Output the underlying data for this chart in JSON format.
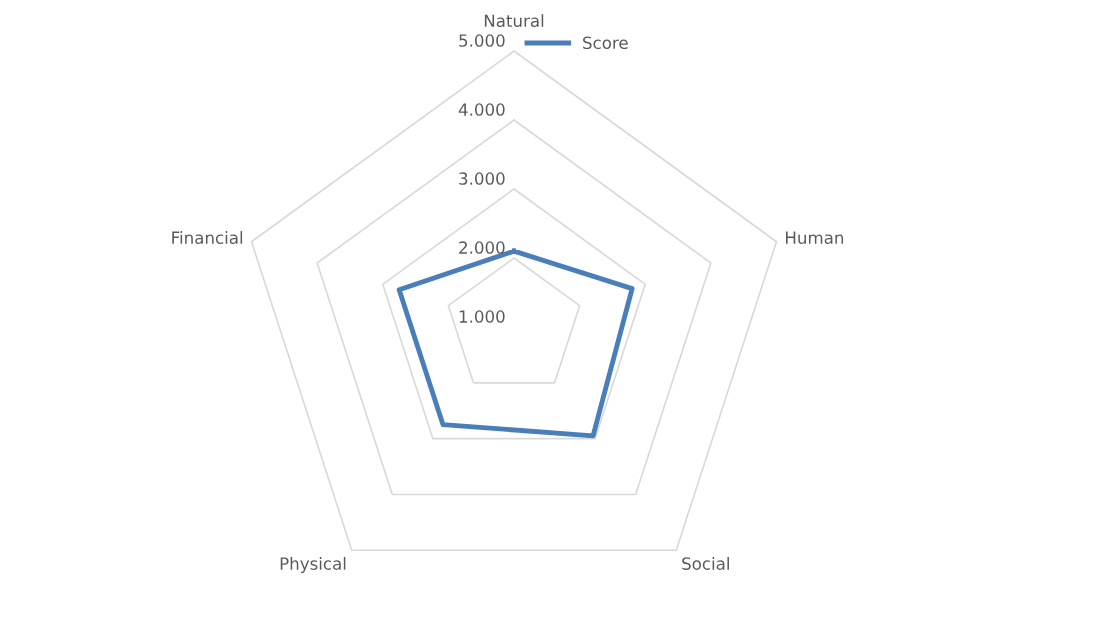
{
  "chart_data": {
    "type": "radar",
    "categories": [
      "Natural",
      "Human",
      "Social",
      "Physical",
      "Financial"
    ],
    "series": [
      {
        "name": "Score",
        "color": "#4a7ebb",
        "values": [
          2.1,
          2.8,
          2.95,
          2.75,
          2.75
        ]
      }
    ],
    "ylim": [
      1,
      5
    ],
    "yticks": [
      {
        "value": 1,
        "label": "1.000"
      },
      {
        "value": 2,
        "label": "2.000"
      },
      {
        "value": 3,
        "label": "3.000"
      },
      {
        "value": 4,
        "label": "4.000"
      },
      {
        "value": 5,
        "label": "5.000"
      }
    ],
    "grid": true,
    "legend": "top",
    "marker": "none",
    "line_style": "solid"
  }
}
